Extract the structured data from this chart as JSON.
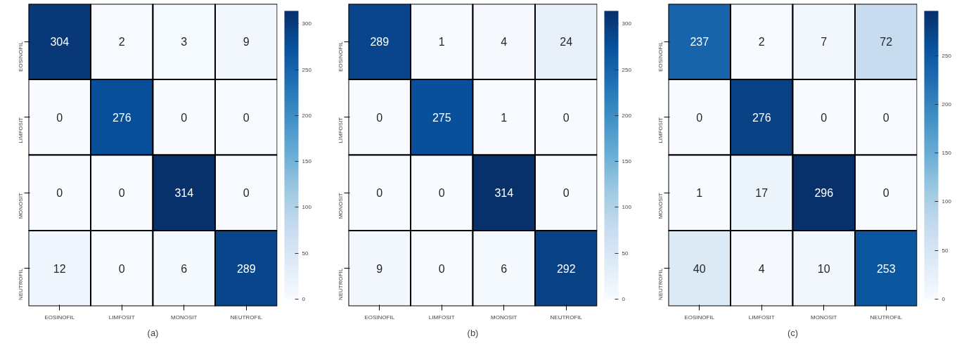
{
  "chart_data": [
    {
      "type": "heatmap",
      "title": "(a)",
      "categories": [
        "EOSINOFIL",
        "LIMFOSIT",
        "MONOSIT",
        "NEUTROFIL"
      ],
      "y_categories": [
        "EOSINOFIL",
        "LIMFOSIT",
        "MONOSIT",
        "NEUTROFIL"
      ],
      "cells": [
        [
          304,
          2,
          3,
          9
        ],
        [
          0,
          276,
          0,
          0
        ],
        [
          0,
          0,
          314,
          0
        ],
        [
          12,
          0,
          6,
          289
        ]
      ],
      "clim": [
        0,
        314
      ],
      "cticks": [
        0,
        50,
        100,
        150,
        200,
        250,
        300
      ],
      "data_labels": true
    },
    {
      "type": "heatmap",
      "title": "(b)",
      "categories": [
        "EOSINOFIL",
        "LIMFOSIT",
        "MONOSIT",
        "NEUTROFIL"
      ],
      "y_categories": [
        "EOSINOFIL",
        "LIMFOSIT",
        "MONOSIT",
        "NEUTROFIL"
      ],
      "cells": [
        [
          289,
          1,
          4,
          24
        ],
        [
          0,
          275,
          1,
          0
        ],
        [
          0,
          0,
          314,
          0
        ],
        [
          9,
          0,
          6,
          292
        ]
      ],
      "clim": [
        0,
        314
      ],
      "cticks": [
        0,
        50,
        100,
        150,
        200,
        250,
        300
      ],
      "data_labels": true
    },
    {
      "type": "heatmap",
      "title": "(c)",
      "categories": [
        "EOSINOFIL",
        "LIMFOSIT",
        "MONOSIT",
        "NEUTROFIL"
      ],
      "y_categories": [
        "EOSINOFIL",
        "LIMFOSIT",
        "MONOSIT",
        "NEUTROFIL"
      ],
      "cells": [
        [
          237,
          2,
          7,
          72
        ],
        [
          0,
          276,
          0,
          0
        ],
        [
          1,
          17,
          296,
          0
        ],
        [
          40,
          4,
          10,
          253
        ]
      ],
      "clim": [
        0,
        296
      ],
      "cticks": [
        0,
        50,
        100,
        150,
        200,
        250
      ],
      "data_labels": true
    }
  ]
}
